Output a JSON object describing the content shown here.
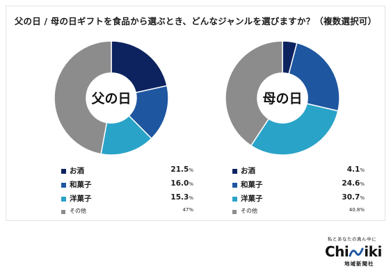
{
  "title": "父の日 / 母の日ギフトを食品から選ぶとき、どんなジャンルを選びますか？（複数選択可）",
  "colors": {
    "osake": "#0d2360",
    "wagashi": "#1e56a0",
    "yogashi": "#2aa3c8",
    "other": "#8c8c8c"
  },
  "chart_data": [
    {
      "type": "pie",
      "center_label": "父の日",
      "slices": [
        {
          "label": "お酒",
          "value": 21.5,
          "display": "21.5",
          "unit": "%"
        },
        {
          "label": "和菓子",
          "value": 16.0,
          "display": "16.0",
          "unit": "%"
        },
        {
          "label": "洋菓子",
          "value": 15.3,
          "display": "15.3",
          "unit": "%"
        },
        {
          "label": "その他",
          "value": 47,
          "display": "47",
          "unit": "%"
        }
      ]
    },
    {
      "type": "pie",
      "center_label": "母の日",
      "slices": [
        {
          "label": "お酒",
          "value": 4.1,
          "display": "4.1",
          "unit": "%"
        },
        {
          "label": "和菓子",
          "value": 24.6,
          "display": "24.6",
          "unit": "%"
        },
        {
          "label": "洋菓子",
          "value": 30.7,
          "display": "30.7",
          "unit": "%"
        },
        {
          "label": "その他",
          "value": 40.8,
          "display": "40.8",
          "unit": "%"
        }
      ]
    }
  ],
  "brand": {
    "tagline": "私とあなたの真ん中に",
    "logo_left": "Chi",
    "logo_right": "iki",
    "company": "地域新聞社"
  }
}
